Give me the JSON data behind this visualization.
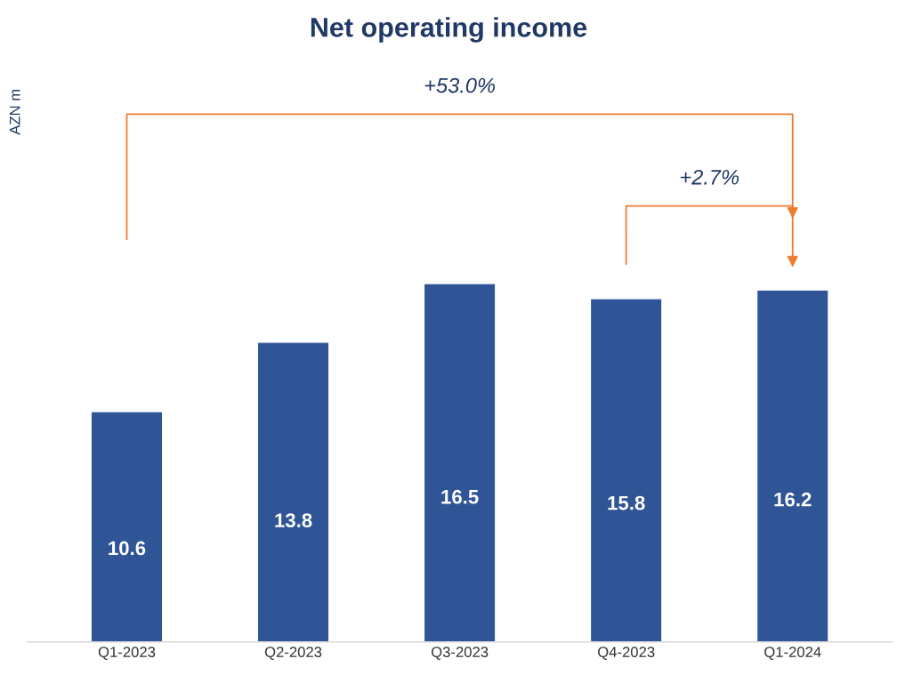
{
  "chart_data": {
    "type": "bar",
    "title": "Net operating income",
    "categories": [
      "Q1-2023",
      "Q2-2023",
      "Q3-2023",
      "Q4-2023",
      "Q1-2024"
    ],
    "values": [
      10.6,
      13.8,
      16.5,
      15.8,
      16.2
    ],
    "color": "#2f5597",
    "data_labels": true,
    "annotations": [
      "AZN m",
      "+53.0%",
      "+2.7%"
    ],
    "grid": false
  }
}
